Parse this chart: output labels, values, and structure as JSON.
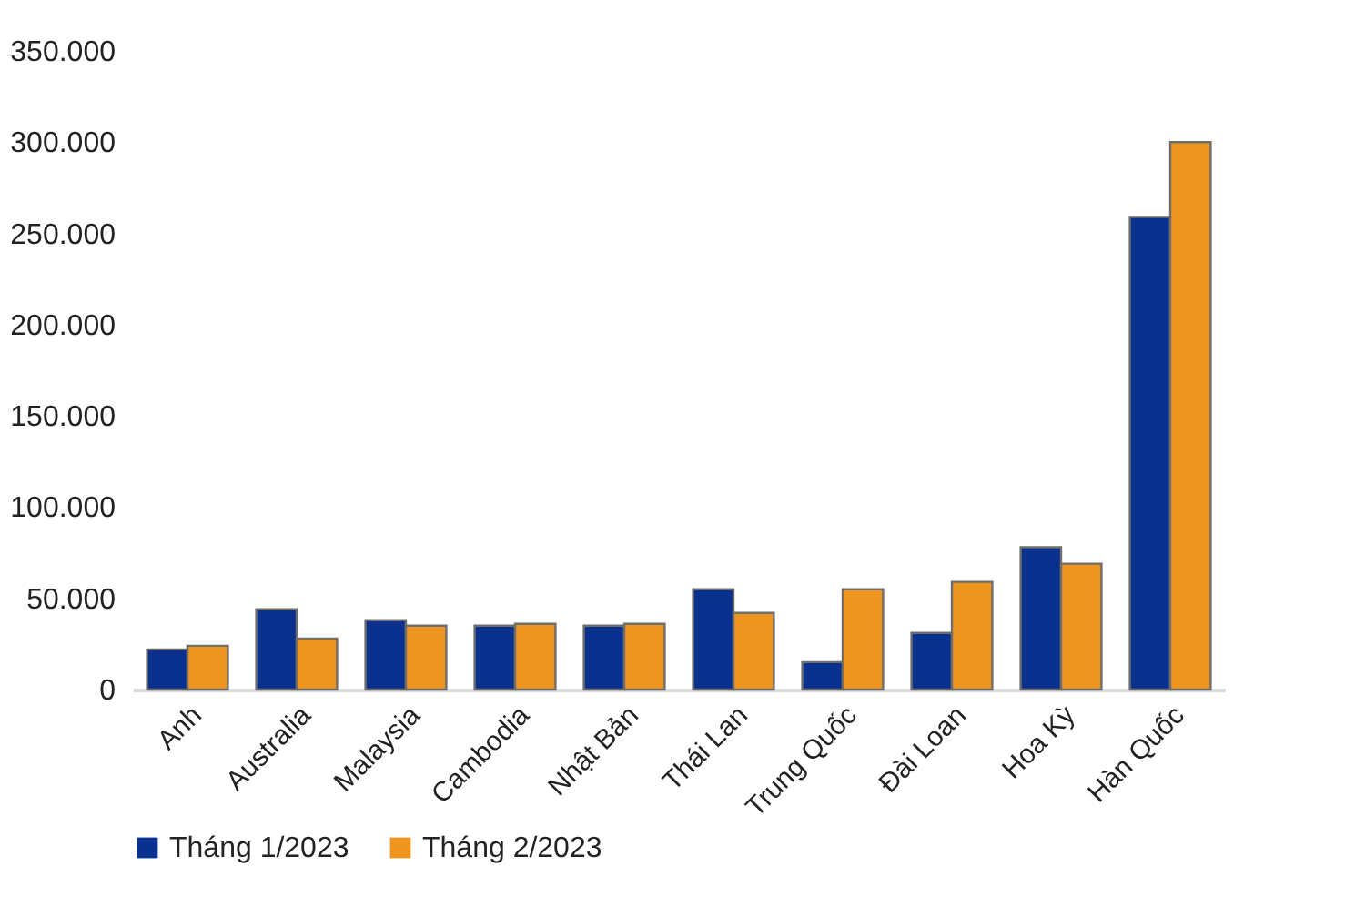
{
  "chart_data": {
    "type": "bar",
    "categories": [
      "Anh",
      "Australia",
      "Malaysia",
      "Cambodia",
      "Nhật Bản",
      "Thái Lan",
      "Trung Quốc",
      "Đài Loan",
      "Hoa Kỳ",
      "Hàn Quốc"
    ],
    "series": [
      {
        "name": "Tháng 1/2023",
        "color": "#0b318f",
        "values": [
          22000,
          44000,
          38000,
          35000,
          35000,
          55000,
          15000,
          31000,
          78000,
          259000
        ]
      },
      {
        "name": "Tháng 2/2023",
        "color": "#ee9520",
        "values": [
          24000,
          28000,
          35000,
          36000,
          36000,
          42000,
          55000,
          59000,
          69000,
          300000
        ]
      }
    ],
    "ylim": [
      0,
      350000
    ],
    "yticks": [
      {
        "value": 0,
        "label": "0"
      },
      {
        "value": 50000,
        "label": "50.000"
      },
      {
        "value": 100000,
        "label": "100.000"
      },
      {
        "value": 150000,
        "label": "150.000"
      },
      {
        "value": 200000,
        "label": "200.000"
      },
      {
        "value": 250000,
        "label": "250.000"
      },
      {
        "value": 300000,
        "label": "300.000"
      },
      {
        "value": 350000,
        "label": "350.000"
      }
    ],
    "grid": false,
    "legend": "bottom"
  }
}
